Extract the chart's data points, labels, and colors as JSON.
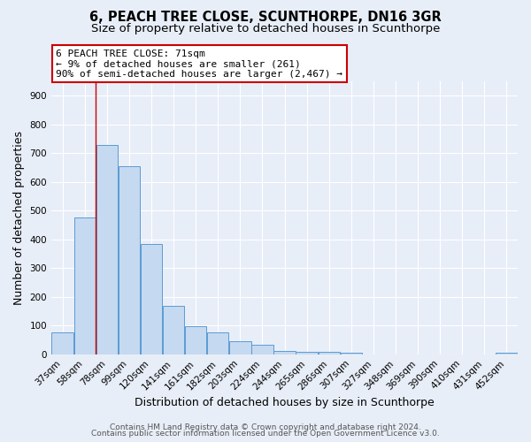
{
  "title": "6, PEACH TREE CLOSE, SCUNTHORPE, DN16 3GR",
  "subtitle": "Size of property relative to detached houses in Scunthorpe",
  "xlabel": "Distribution of detached houses by size in Scunthorpe",
  "ylabel": "Number of detached properties",
  "bin_labels": [
    "37sqm",
    "58sqm",
    "78sqm",
    "99sqm",
    "120sqm",
    "141sqm",
    "161sqm",
    "182sqm",
    "203sqm",
    "224sqm",
    "244sqm",
    "265sqm",
    "286sqm",
    "307sqm",
    "327sqm",
    "348sqm",
    "369sqm",
    "390sqm",
    "410sqm",
    "431sqm",
    "452sqm"
  ],
  "bar_values": [
    75,
    475,
    730,
    655,
    385,
    170,
    97,
    75,
    45,
    32,
    13,
    10,
    10,
    7,
    0,
    0,
    0,
    0,
    0,
    0,
    7
  ],
  "bar_color": "#c5d9f0",
  "bar_edge_color": "#5b9bd5",
  "annotation_line1": "6 PEACH TREE CLOSE: 71sqm",
  "annotation_line2": "← 9% of detached houses are smaller (261)",
  "annotation_line3": "90% of semi-detached houses are larger (2,467) →",
  "annotation_box_color": "#ffffff",
  "annotation_box_edge": "#cc0000",
  "ylim": [
    0,
    950
  ],
  "yticks": [
    0,
    100,
    200,
    300,
    400,
    500,
    600,
    700,
    800,
    900
  ],
  "footer_line1": "Contains HM Land Registry data © Crown copyright and database right 2024.",
  "footer_line2": "Contains public sector information licensed under the Open Government Licence v3.0.",
  "bg_color": "#e8eef8",
  "grid_color": "#ffffff",
  "title_fontsize": 10.5,
  "subtitle_fontsize": 9.5,
  "xlabel_fontsize": 9,
  "ylabel_fontsize": 9,
  "tick_fontsize": 7.5,
  "annotation_fontsize": 8,
  "footer_fontsize": 6.5
}
